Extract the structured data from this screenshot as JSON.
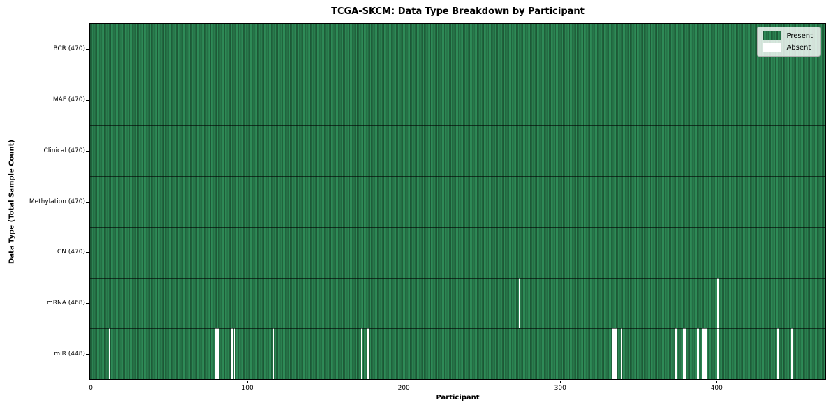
{
  "chart_data": {
    "type": "heatmap",
    "title": "TCGA-SKCM: Data Type Breakdown by Participant",
    "xlabel": "Participant",
    "ylabel": "Data Type (Total Sample Count)",
    "n_participants": 470,
    "x_ticks": [
      0,
      100,
      200,
      300,
      400
    ],
    "grid": false,
    "legend_position": "upper-right",
    "rows": [
      {
        "data_type": "BCR",
        "label": "BCR (470)",
        "present_count": 470,
        "absent_participants": []
      },
      {
        "data_type": "MAF",
        "label": "MAF (470)",
        "present_count": 470,
        "absent_participants": []
      },
      {
        "data_type": "Clinical",
        "label": "Clinical (470)",
        "present_count": 470,
        "absent_participants": []
      },
      {
        "data_type": "Methylation",
        "label": "Methylation (470)",
        "present_count": 470,
        "absent_participants": []
      },
      {
        "data_type": "CN",
        "label": "CN (470)",
        "present_count": 470,
        "absent_participants": []
      },
      {
        "data_type": "mRNA",
        "label": "mRNA (468)",
        "present_count": 468,
        "absent_participants": [
          274,
          401
        ]
      },
      {
        "data_type": "miR",
        "label": "miR (448)",
        "present_count": 448,
        "absent_participants": [
          12,
          80,
          81,
          90,
          92,
          117,
          173,
          177,
          334,
          335,
          336,
          339,
          374,
          379,
          380,
          388,
          391,
          392,
          393,
          401,
          439,
          448
        ]
      }
    ],
    "legend": [
      {
        "label": "Present",
        "color": "#2e8b57"
      },
      {
        "label": "Absent",
        "color": "#ffffff"
      }
    ],
    "colors": {
      "present_fill": "#2e8b57",
      "cell_edge": "#1b5433",
      "absent_fill": "#ffffff",
      "spine": "#000000"
    }
  }
}
